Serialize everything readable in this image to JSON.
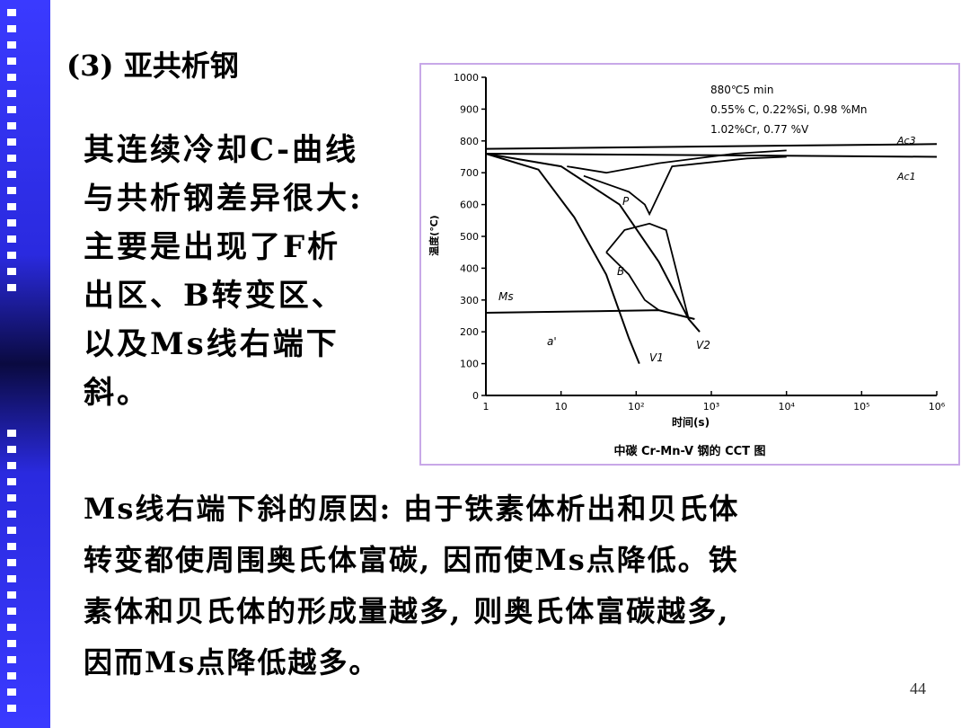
{
  "heading": "(3) 亚共析钢",
  "body_lines": [
    "其连续冷却C-曲线",
    "与共析钢差异很大:",
    "主要是出现了F析",
    "出区、B转变区、",
    "以及Ms线右端下",
    "斜。"
  ],
  "bottom_lines": [
    "Ms线右端下斜的原因: 由于铁素体析出和贝氏体",
    "转变都使周围奥氏体富碳, 因而使Ms点降低。铁",
    "素体和贝氏体的形成量越多, 则奥氏体富碳越多,",
    "因而Ms点降低越多。"
  ],
  "page_number": "44",
  "figure": {
    "caption": "中碳 Cr-Mn-V 钢的 CCT 图",
    "conditions": [
      "880℃5 min",
      "0.55% C, 0.22%Si, 0.98 %Mn",
      "1.02%Cr, 0.77 %V"
    ],
    "region_labels": {
      "p": "P",
      "b": "B",
      "ms": "Ms",
      "martensite": "a'",
      "v1": "V1",
      "v2": "V2",
      "ac3": "Ac3",
      "ac1": "Ac1"
    }
  },
  "chart_data": {
    "type": "line",
    "title": "中碳 Cr-Mn-V 钢的 CCT 图",
    "xlabel": "时间(s)",
    "ylabel": "温度(℃)",
    "xscale": "log",
    "xlim": [
      1,
      1000000
    ],
    "ylim": [
      0,
      1000
    ],
    "x_tick_labels": [
      "1",
      "10",
      "10²",
      "10³",
      "10⁴",
      "10⁵",
      "10⁶"
    ],
    "y_tick_labels": [
      "0",
      "100",
      "200",
      "300",
      "400",
      "500",
      "600",
      "700",
      "800",
      "900",
      "1000"
    ],
    "lines": [
      {
        "name": "Ac3",
        "points": [
          [
            1,
            775
          ],
          [
            1000000,
            790
          ]
        ]
      },
      {
        "name": "Ac1",
        "points": [
          [
            1,
            760
          ],
          [
            1000000,
            750
          ]
        ]
      },
      {
        "name": "Ms",
        "points": [
          [
            1,
            260
          ],
          [
            30,
            265
          ],
          [
            200,
            268
          ],
          [
            600,
            240
          ]
        ]
      },
      {
        "name": "V1",
        "points": [
          [
            1,
            760
          ],
          [
            5,
            710
          ],
          [
            15,
            560
          ],
          [
            40,
            380
          ],
          [
            80,
            180
          ],
          [
            110,
            100
          ]
        ]
      },
      {
        "name": "V2",
        "points": [
          [
            1,
            760
          ],
          [
            10,
            720
          ],
          [
            60,
            600
          ],
          [
            200,
            420
          ],
          [
            500,
            240
          ],
          [
            700,
            200
          ]
        ]
      }
    ]
  }
}
